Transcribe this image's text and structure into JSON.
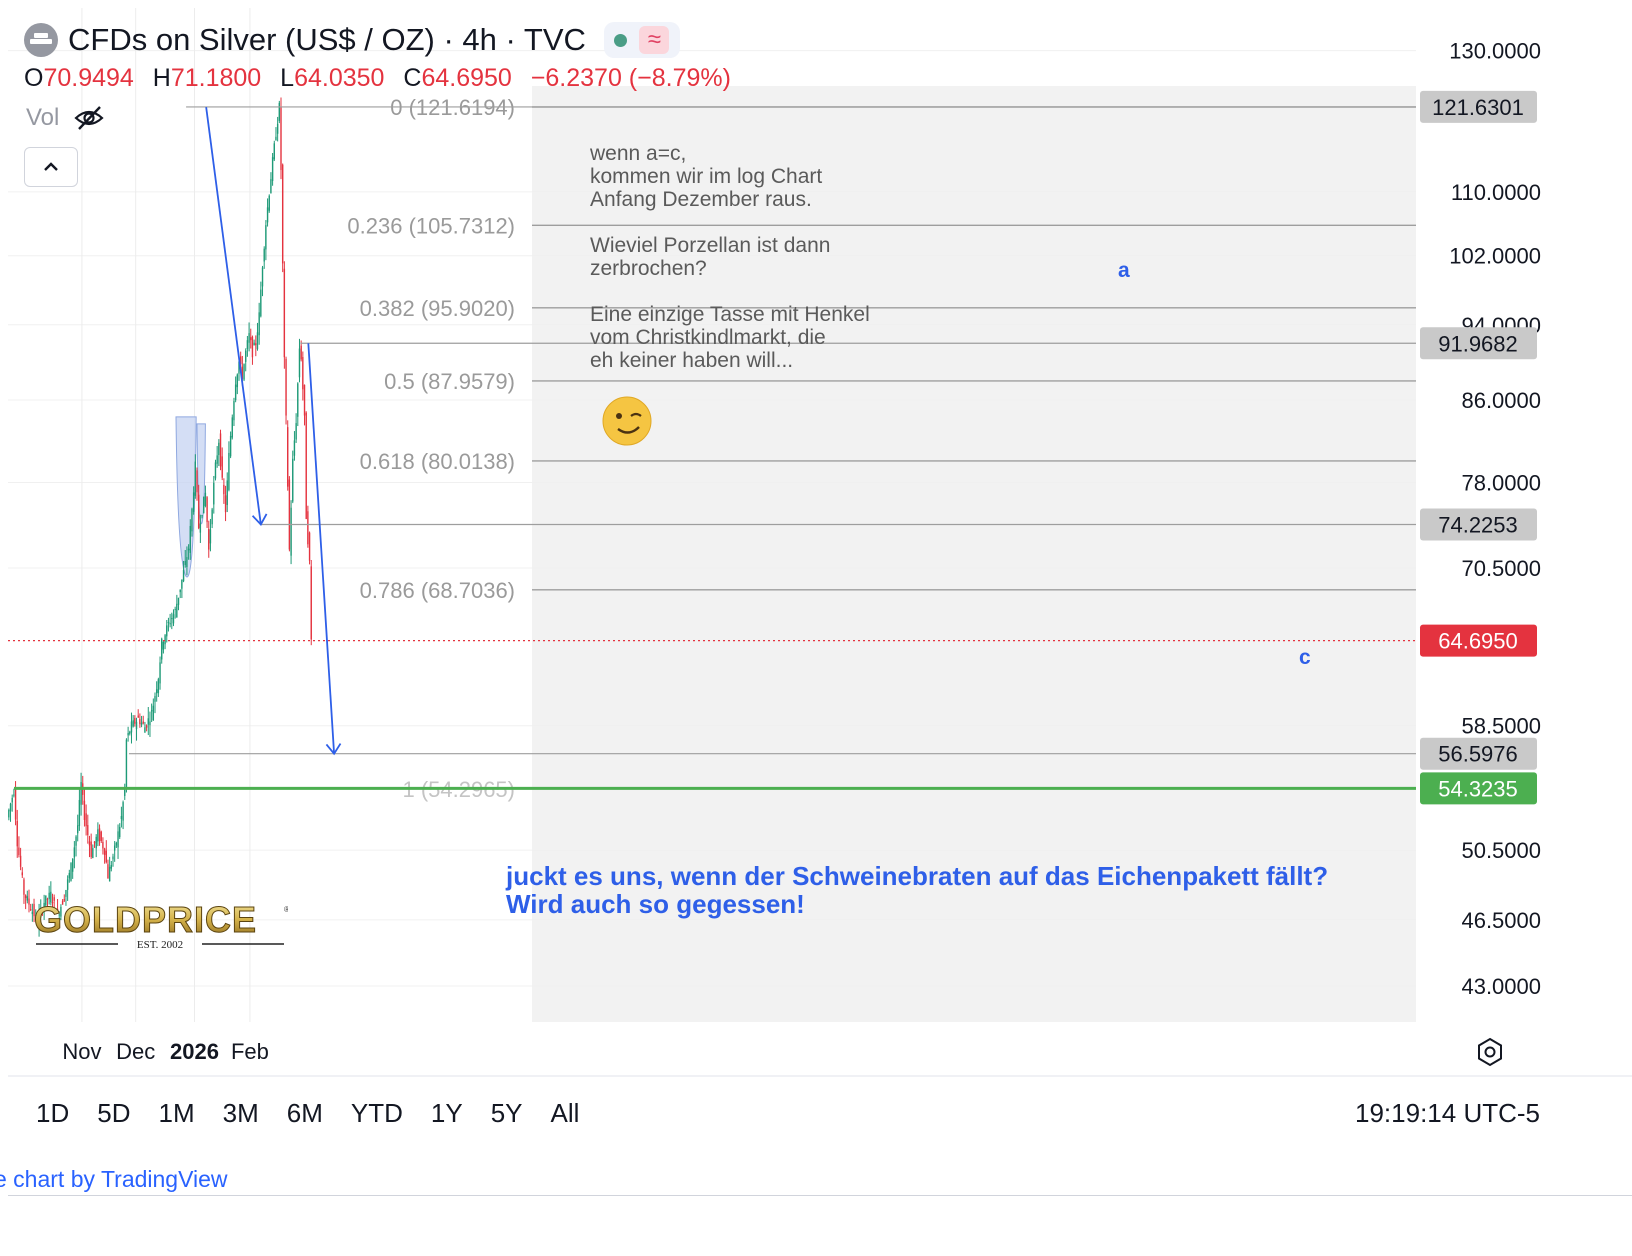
{
  "header": {
    "title": "CFDs on Silver (US$ / OZ) · 4h · TVC",
    "ohlc": [
      {
        "label": "O",
        "value": "70.9494"
      },
      {
        "label": "H",
        "value": "71.1800"
      },
      {
        "label": "L",
        "value": "64.0350"
      },
      {
        "label": "C",
        "value": "64.6950"
      }
    ],
    "change": "−6.2370 (−8.79%)",
    "volume_label": "Vol"
  },
  "colors": {
    "up": "#1e9a77",
    "down": "#e4333f",
    "fib_line": "#9e9e9e",
    "annotation_blue": "#2e5fe8",
    "support_green": "#4caf50",
    "cup_fill": "#c5d3f2"
  },
  "icons": [
    "silver-symbol-icon",
    "market-open-dot-icon",
    "delayed-data-icon",
    "eye-off-icon",
    "chevron-up-icon",
    "settings-hexagon-icon"
  ],
  "chart_data": {
    "type": "candlestick",
    "scale": "log",
    "y_ticks": [
      "130.0000",
      "110.0000",
      "102.0000",
      "94.0000",
      "86.0000",
      "78.0000",
      "70.5000",
      "58.5000",
      "50.5000",
      "46.5000",
      "43.0000"
    ],
    "y_tick_values": [
      130,
      110,
      102,
      94,
      86,
      78,
      70.5,
      58.5,
      50.5,
      46.5,
      43
    ],
    "x_labels": [
      {
        "label": "Nov",
        "bold": false
      },
      {
        "label": "Dec",
        "bold": false
      },
      {
        "label": "2026",
        "bold": true
      },
      {
        "label": "Feb",
        "bold": false
      }
    ],
    "price_badges": [
      {
        "label": "121.6301",
        "value": 121.6301,
        "style": "gray"
      },
      {
        "label": "91.9682",
        "value": 91.9682,
        "style": "gray"
      },
      {
        "label": "74.2253",
        "value": 74.2253,
        "style": "gray"
      },
      {
        "label": "64.6950",
        "value": 64.695,
        "style": "red"
      },
      {
        "label": "56.5976",
        "value": 56.5976,
        "style": "gray"
      },
      {
        "label": "54.3235",
        "value": 54.3235,
        "style": "green"
      }
    ],
    "fib_levels": [
      {
        "label": "0 (121.6194)",
        "value": 121.6194
      },
      {
        "label": "0.236 (105.7312)",
        "value": 105.7312
      },
      {
        "label": "0.382 (95.9020)",
        "value": 95.902
      },
      {
        "label": "0.5 (87.9579)",
        "value": 87.9579
      },
      {
        "label": "0.618 (80.0138)",
        "value": 80.0138
      },
      {
        "label": "0.786 (68.7036)",
        "value": 68.7036
      },
      {
        "label": "1 (54.2965)",
        "value": 54.2965
      }
    ],
    "price_path": [
      [
        0,
        52.5
      ],
      [
        4,
        54.2
      ],
      [
        6,
        51
      ],
      [
        10,
        48
      ],
      [
        14,
        47.2
      ],
      [
        18,
        46.4
      ],
      [
        22,
        47.5
      ],
      [
        26,
        47.9
      ],
      [
        30,
        46.8
      ],
      [
        34,
        47.8
      ],
      [
        38,
        49.5
      ],
      [
        42,
        52
      ],
      [
        44,
        54.6
      ],
      [
        46,
        52.6
      ],
      [
        50,
        50.3
      ],
      [
        54,
        51.5
      ],
      [
        58,
        50.5
      ],
      [
        60,
        49
      ],
      [
        64,
        50.5
      ],
      [
        68,
        52.5
      ],
      [
        70,
        54.3
      ],
      [
        71,
        57.5
      ],
      [
        74,
        58.5
      ],
      [
        78,
        59
      ],
      [
        82,
        58.4
      ],
      [
        86,
        59.4
      ],
      [
        90,
        62
      ],
      [
        92,
        64.5
      ],
      [
        96,
        66
      ],
      [
        100,
        67
      ],
      [
        104,
        69.5
      ],
      [
        108,
        72.2
      ],
      [
        110,
        75.5
      ],
      [
        112,
        79.5
      ],
      [
        114,
        74
      ],
      [
        116,
        75.5
      ],
      [
        118,
        77
      ],
      [
        120,
        72
      ],
      [
        122,
        76
      ],
      [
        124,
        79.5
      ],
      [
        126,
        82
      ],
      [
        128,
        78
      ],
      [
        130,
        75.5
      ],
      [
        132,
        80.5
      ],
      [
        134,
        84.5
      ],
      [
        136,
        88
      ],
      [
        138,
        90
      ],
      [
        140,
        88.5
      ],
      [
        142,
        91
      ],
      [
        144,
        92.8
      ],
      [
        146,
        91
      ],
      [
        148,
        92
      ],
      [
        150,
        95
      ],
      [
        152,
        101
      ],
      [
        154,
        106
      ],
      [
        156,
        110
      ],
      [
        158,
        114
      ],
      [
        160,
        118
      ],
      [
        162,
        121.6
      ],
      [
        163,
        113
      ],
      [
        165,
        90
      ],
      [
        166,
        84
      ],
      [
        168,
        72
      ],
      [
        170,
        80
      ],
      [
        172,
        84
      ],
      [
        174,
        91.5
      ],
      [
        175,
        90.5
      ],
      [
        177,
        84
      ],
      [
        178,
        75
      ],
      [
        180,
        70.9
      ],
      [
        181,
        64.7
      ]
    ],
    "annotations": {
      "note_lines": [
        "wenn a=c,",
        "kommen wir im log Chart",
        "Anfang Dezember raus.",
        "",
        "Wieviel Porzellan ist dann",
        "zerbrochen?",
        "",
        "Eine einzige Tasse mit Henkel",
        "vom Christkindlmarkt, die",
        "eh keiner haben will..."
      ],
      "emoji": "😉",
      "wave_a": "a",
      "wave_c": "c",
      "bottom_lines": [
        "juckt es uns, wenn der Schweinebraten auf das Eichenpakett fällt?",
        "Wird auch so gegessen!"
      ]
    }
  },
  "logo": {
    "text": "GOLDPRICE",
    "tagline": "EST. 2002"
  },
  "range_buttons": [
    "1D",
    "5D",
    "1M",
    "3M",
    "6M",
    "YTD",
    "1Y",
    "5Y",
    "All"
  ],
  "clock": "19:19:14 UTC-5",
  "footer": "e chart by TradingView"
}
